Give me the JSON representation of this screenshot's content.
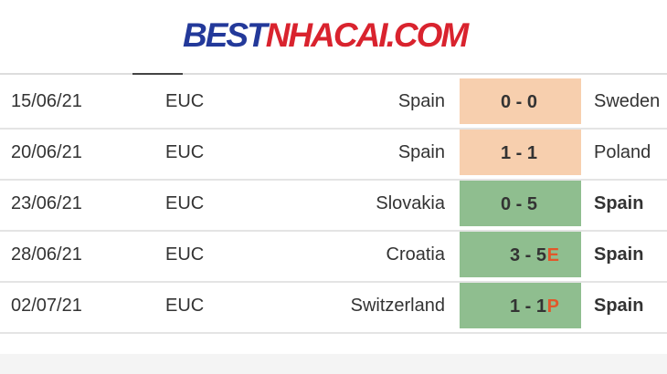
{
  "logo": {
    "part1": "BEST",
    "part2": "NHACAI.COM"
  },
  "colors": {
    "draw": "#f7cfae",
    "win": "#8fbe8f",
    "note": "#e2572a"
  },
  "matches": [
    {
      "date": "15/06/21",
      "comp": "EUC",
      "home": "Spain",
      "score": "0 - 0",
      "note": "",
      "away": "Sweden",
      "result": "draw",
      "away_bold": false
    },
    {
      "date": "20/06/21",
      "comp": "EUC",
      "home": "Spain",
      "score": "1 - 1",
      "note": "",
      "away": "Poland",
      "result": "draw",
      "away_bold": false
    },
    {
      "date": "23/06/21",
      "comp": "EUC",
      "home": "Slovakia",
      "score": "0 - 5",
      "note": "",
      "away": "Spain",
      "result": "win",
      "away_bold": true
    },
    {
      "date": "28/06/21",
      "comp": "EUC",
      "home": "Croatia",
      "score": "3 - 5",
      "note": "E",
      "away": "Spain",
      "result": "win",
      "away_bold": true
    },
    {
      "date": "02/07/21",
      "comp": "EUC",
      "home": "Switzerland",
      "score": "1 - 1",
      "note": "P",
      "away": "Spain",
      "result": "win",
      "away_bold": true
    }
  ]
}
